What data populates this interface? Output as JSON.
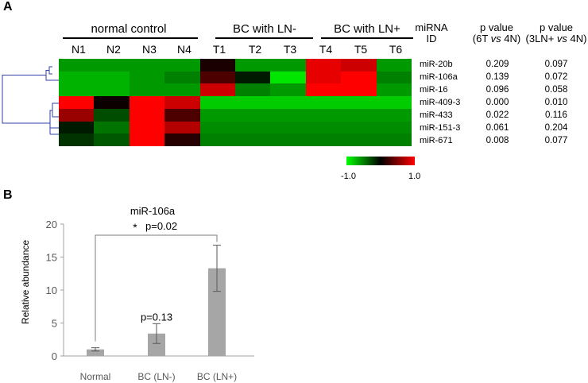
{
  "panel_a": {
    "letter": "A",
    "groups": [
      {
        "label": "normal control"
      },
      {
        "label": "BC with LN-"
      },
      {
        "label": "BC with LN+"
      }
    ],
    "columns": [
      "N1",
      "N2",
      "N3",
      "N4",
      "T1",
      "T2",
      "T3",
      "T4",
      "T5",
      "T6"
    ],
    "header_mirna_line1": "miRNA",
    "header_mirna_line2": "ID",
    "header_p1_line1": "p value",
    "header_p1_line2_pre": "(6T ",
    "header_p1_line2_vs": "vs",
    "header_p1_line2_post": " 4N)",
    "header_p2_line1": "p value",
    "header_p2_line2_pre": "(3LN+ ",
    "header_p2_line2_vs": "vs",
    "header_p2_line2_post": " 4N)",
    "rows": [
      {
        "id": "miR-20b",
        "p1": "0.209",
        "p2": "0.097"
      },
      {
        "id": "miR-106a",
        "p1": "0.139",
        "p2": "0.072"
      },
      {
        "id": "miR-16",
        "p1": "0.096",
        "p2": "0.058"
      },
      {
        "id": "miR-409-3",
        "p1": "0.000",
        "p2": "0.010"
      },
      {
        "id": "miR-433",
        "p1": "0.022",
        "p2": "0.116"
      },
      {
        "id": "miR-151-3",
        "p1": "0.061",
        "p2": "0.204"
      },
      {
        "id": "miR-671",
        "p1": "0.008",
        "p2": "0.077"
      }
    ],
    "colorbar": {
      "min_label": "-1.0",
      "max_label": "1.0"
    }
  },
  "chart_data": [
    {
      "type": "heatmap",
      "x": [
        "N1",
        "N2",
        "N3",
        "N4",
        "T1",
        "T2",
        "T3",
        "T4",
        "T5",
        "T6"
      ],
      "y": [
        "miR-20b",
        "miR-106a",
        "miR-16",
        "miR-409-3",
        "miR-433",
        "miR-151-3",
        "miR-671"
      ],
      "values": [
        [
          -0.6,
          -0.6,
          -0.6,
          -0.6,
          0.1,
          -0.6,
          -0.6,
          0.9,
          0.8,
          -0.6
        ],
        [
          -0.7,
          -0.7,
          -0.6,
          -0.5,
          0.3,
          -0.1,
          -0.9,
          0.9,
          1.0,
          -0.5
        ],
        [
          -0.7,
          -0.7,
          -0.6,
          -0.6,
          0.8,
          -0.5,
          -0.6,
          1.0,
          1.0,
          -0.6
        ],
        [
          1.0,
          0.05,
          1.0,
          0.8,
          -0.8,
          -0.8,
          -0.8,
          -0.8,
          -0.8,
          -0.8
        ],
        [
          0.6,
          -0.3,
          1.0,
          0.3,
          -0.6,
          -0.6,
          -0.6,
          -0.6,
          -0.6,
          -0.6
        ],
        [
          -0.1,
          -0.45,
          1.0,
          0.7,
          -0.55,
          -0.55,
          -0.55,
          -0.55,
          -0.55,
          -0.55
        ],
        [
          -0.2,
          -0.35,
          1.0,
          0.15,
          -0.5,
          -0.5,
          -0.5,
          -0.5,
          -0.5,
          -0.5
        ]
      ],
      "range": [
        -1.0,
        1.0
      ]
    },
    {
      "type": "bar",
      "panel": "B",
      "title": "miR-106a",
      "categories": [
        "Normal",
        "BC (LN-)",
        "BC (LN+)"
      ],
      "values": [
        1.0,
        3.4,
        13.3
      ],
      "errors": [
        0.25,
        1.5,
        3.5
      ],
      "ylabel": "Relative abundance",
      "ylim": [
        0,
        20
      ],
      "yticks": [
        0,
        5,
        10,
        15,
        20
      ],
      "bar_color": "#a6a6a6",
      "annotations": [
        {
          "text": "p=0.13",
          "category": "BC (LN-)"
        },
        {
          "text": "p=0.02",
          "star": "*",
          "from": "Normal",
          "to": "BC (LN+)"
        }
      ]
    }
  ]
}
